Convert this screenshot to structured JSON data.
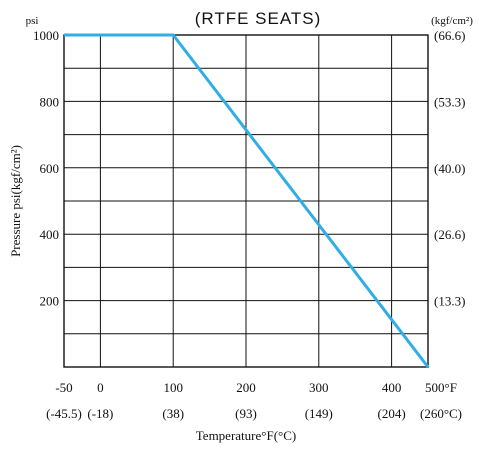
{
  "chart_data": {
    "type": "line",
    "title": "(RTFE  SEATS)",
    "left_unit": "psi",
    "right_unit": "(kgf/cm²)",
    "ylabel": "Pressure  psi(kgf/cm²)",
    "xlabel": "Temperature°F(°C)",
    "xlim": [
      -50,
      450
    ],
    "ylim": [
      0,
      1000
    ],
    "x_ticks": [
      {
        "value": -50,
        "label": "-50",
        "c_label": "(-45.5)"
      },
      {
        "value": 0,
        "label": "0",
        "c_label": "(-18)"
      },
      {
        "value": 100,
        "label": "100",
        "c_label": "(38)"
      },
      {
        "value": 200,
        "label": "200",
        "c_label": "(93)"
      },
      {
        "value": 300,
        "label": "300",
        "c_label": "(149)"
      },
      {
        "value": 400,
        "label": "400",
        "c_label": "(204)"
      },
      {
        "value": 500,
        "label": "500°F",
        "c_label": "(260°C)"
      }
    ],
    "y_ticks": [
      {
        "value": 1000,
        "label": "1000",
        "right_label": "(66.6)"
      },
      {
        "value": 800,
        "label": "800",
        "right_label": "(53.3)"
      },
      {
        "value": 600,
        "label": "600",
        "right_label": "(40.0)"
      },
      {
        "value": 400,
        "label": "400",
        "right_label": "(26.6)"
      },
      {
        "value": 200,
        "label": "200",
        "right_label": "(13.3)"
      }
    ],
    "grid": true,
    "x_gridlines": [
      -50,
      0,
      100,
      200,
      300,
      400,
      450
    ],
    "y_gridlines": [
      0,
      100,
      200,
      300,
      400,
      500,
      600,
      700,
      800,
      900,
      1000
    ],
    "series": [
      {
        "color": "#2eaee4",
        "x": [
          -50,
          100,
          450
        ],
        "y": [
          1000,
          1000,
          0
        ]
      }
    ]
  }
}
